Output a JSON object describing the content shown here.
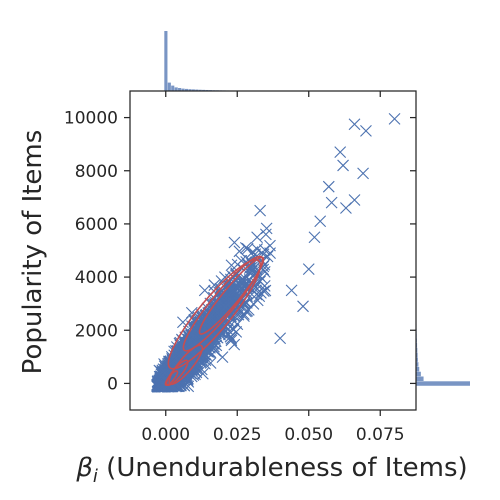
{
  "chart_data": {
    "type": "scatter",
    "title": "",
    "xlabel": "β_i (Unendurableness of Items)",
    "ylabel": "Popularity of Items",
    "xlim": [
      -0.0125,
      0.0875
    ],
    "ylim": [
      -1000,
      11000
    ],
    "xticks": [
      0.0,
      0.025,
      0.05,
      0.075
    ],
    "xtick_labels": [
      "0.000",
      "0.025",
      "0.050",
      "0.075"
    ],
    "yticks": [
      0,
      2000,
      4000,
      6000,
      8000,
      10000
    ],
    "ytick_labels": [
      "0",
      "2000",
      "4000",
      "6000",
      "8000",
      "10000"
    ],
    "grid": false,
    "marker": "x",
    "colors": {
      "scatter": "#4c72b0",
      "kde": "#c44e52",
      "axes": "#262626"
    },
    "trend": {
      "slope": 130000,
      "intercept": 0,
      "x_range": [
        -0.004,
        0.06
      ]
    },
    "outliers": [
      {
        "x": 0.08,
        "y": 9950
      },
      {
        "x": 0.07,
        "y": 9500
      },
      {
        "x": 0.066,
        "y": 9750
      },
      {
        "x": 0.069,
        "y": 7900
      },
      {
        "x": 0.062,
        "y": 8200
      },
      {
        "x": 0.061,
        "y": 8700
      },
      {
        "x": 0.058,
        "y": 6800
      },
      {
        "x": 0.057,
        "y": 7400
      },
      {
        "x": 0.063,
        "y": 6600
      },
      {
        "x": 0.054,
        "y": 6100
      },
      {
        "x": 0.066,
        "y": 6900
      },
      {
        "x": 0.052,
        "y": 5500
      },
      {
        "x": 0.05,
        "y": 4300
      },
      {
        "x": 0.048,
        "y": 2900
      },
      {
        "x": 0.044,
        "y": 3500
      },
      {
        "x": 0.028,
        "y": 5100
      },
      {
        "x": 0.024,
        "y": 5300
      },
      {
        "x": 0.01,
        "y": 2400
      },
      {
        "x": 0.006,
        "y": 2300
      },
      {
        "x": 0.033,
        "y": 6500
      },
      {
        "x": 0.04,
        "y": 1700
      }
    ],
    "kde_contours": [
      {
        "center": [
          0.017,
          2600
        ],
        "major_len": 0.031,
        "minor_len": 0.007
      },
      {
        "center": [
          0.02,
          3000
        ],
        "major_len": 0.027,
        "minor_len": 0.005
      },
      {
        "center": [
          0.023,
          3300
        ],
        "major_len": 0.022,
        "minor_len": 0.0036
      },
      {
        "center": [
          0.007,
          700
        ],
        "major_len": 0.011,
        "minor_len": 0.003
      },
      {
        "center": [
          0.004,
          400
        ],
        "major_len": 0.007,
        "minor_len": 0.002
      },
      {
        "center": [
          0.002,
          200
        ],
        "major_len": 0.004,
        "minor_len": 0.0012
      }
    ],
    "marginal_x": {
      "bin_edges_start": -0.0005,
      "bin_width": 0.0012,
      "counts": [
        1.0,
        0.14,
        0.09,
        0.06,
        0.05,
        0.04,
        0.035,
        0.03,
        0.027,
        0.024,
        0.021,
        0.019,
        0.017,
        0.015,
        0.013,
        0.012,
        0.011,
        0.01,
        0.009,
        0.008,
        0.007,
        0.006,
        0.006,
        0.005,
        0.005,
        0.004,
        0.004,
        0.003,
        0.003,
        0.003,
        0.002,
        0.002,
        0.002,
        0.002,
        0.001,
        0.001,
        0.001,
        0.001,
        0.001,
        0.001,
        0.001,
        0.001,
        0.001,
        0.001,
        0.001,
        0.001,
        0.001,
        0.001,
        0.001,
        0.001,
        0.001,
        0.001,
        0.001,
        0.001,
        0.001,
        0.001,
        0.001,
        0.001,
        0.001,
        0.001,
        0.001,
        0.001,
        0.001,
        0.001,
        0.001,
        0.001,
        0.001,
        0.001,
        0.001,
        0.001
      ]
    },
    "marginal_y": {
      "bin_edges_start": -100,
      "bin_width": 180,
      "counts": [
        1.0,
        0.14,
        0.09,
        0.06,
        0.045,
        0.035,
        0.03,
        0.025,
        0.02,
        0.017,
        0.014,
        0.012,
        0.01,
        0.008,
        0.007,
        0.006,
        0.005,
        0.004,
        0.004,
        0.003,
        0.003,
        0.002,
        0.002,
        0.002,
        0.001,
        0.001,
        0.001,
        0.001,
        0.001,
        0.001,
        0.001,
        0.001,
        0.001,
        0.001,
        0.001
      ]
    }
  }
}
